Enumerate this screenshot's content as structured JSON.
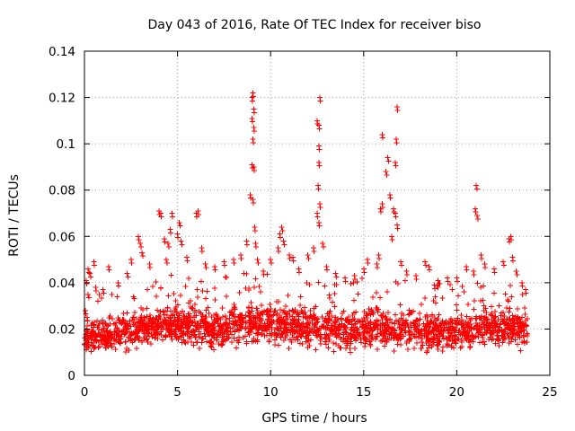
{
  "chart_data": {
    "type": "scatter",
    "title": "Day 043 of 2016, Rate Of TEC Index for receiver biso",
    "xlabel": "GPS time / hours",
    "ylabel": "ROTI / TECUs",
    "xlim": [
      0,
      25
    ],
    "ylim": [
      0,
      0.14
    ],
    "x_ticks": [
      0,
      5,
      10,
      15,
      20,
      25
    ],
    "y_ticks": [
      0,
      0.02,
      0.04,
      0.06,
      0.08,
      0.1,
      0.12,
      0.14
    ],
    "x_tick_labels": [
      "0",
      "5",
      "10",
      "15",
      "20",
      "25"
    ],
    "y_tick_labels": [
      "0",
      "0.02",
      "0.04",
      "0.06",
      "0.08",
      "0.1",
      "0.12",
      "0.14"
    ],
    "grid": true,
    "marker": "+",
    "color": "#ff0000",
    "series": [
      {
        "name": "ROTI",
        "points": [
          [
            0.05,
            0.028
          ],
          [
            0.1,
            0.041
          ],
          [
            0.2,
            0.046
          ],
          [
            0.3,
            0.044
          ],
          [
            0.2,
            0.035
          ],
          [
            0.15,
            0.025
          ],
          [
            0.5,
            0.049
          ],
          [
            0.6,
            0.038
          ],
          [
            1.0,
            0.037
          ],
          [
            1.3,
            0.047
          ],
          [
            1.8,
            0.04
          ],
          [
            2.3,
            0.044
          ],
          [
            2.5,
            0.05
          ],
          [
            2.9,
            0.06
          ],
          [
            3.0,
            0.057
          ],
          [
            3.1,
            0.053
          ],
          [
            3.5,
            0.048
          ],
          [
            4.0,
            0.071
          ],
          [
            4.1,
            0.07
          ],
          [
            4.3,
            0.059
          ],
          [
            4.5,
            0.057
          ],
          [
            4.6,
            0.063
          ],
          [
            4.4,
            0.05
          ],
          [
            4.7,
            0.07
          ],
          [
            5.0,
            0.061
          ],
          [
            5.1,
            0.066
          ],
          [
            5.2,
            0.058
          ],
          [
            5.5,
            0.051
          ],
          [
            6.0,
            0.07
          ],
          [
            6.1,
            0.071
          ],
          [
            6.3,
            0.055
          ],
          [
            6.5,
            0.048
          ],
          [
            7.0,
            0.047
          ],
          [
            7.5,
            0.049
          ],
          [
            8.0,
            0.05
          ],
          [
            8.4,
            0.052
          ],
          [
            8.7,
            0.058
          ],
          [
            8.9,
            0.078
          ],
          [
            9.0,
            0.091
          ],
          [
            9.05,
            0.102
          ],
          [
            9.0,
            0.12
          ],
          [
            9.05,
            0.122
          ],
          [
            9.1,
            0.115
          ],
          [
            9.0,
            0.111
          ],
          [
            9.1,
            0.107
          ],
          [
            9.1,
            0.09
          ],
          [
            9.05,
            0.076
          ],
          [
            9.15,
            0.064
          ],
          [
            9.2,
            0.057
          ],
          [
            9.3,
            0.05
          ],
          [
            9.6,
            0.045
          ],
          [
            10.0,
            0.05
          ],
          [
            10.4,
            0.055
          ],
          [
            10.5,
            0.061
          ],
          [
            10.6,
            0.064
          ],
          [
            10.7,
            0.058
          ],
          [
            11.0,
            0.052
          ],
          [
            11.2,
            0.051
          ],
          [
            11.5,
            0.046
          ],
          [
            12.0,
            0.052
          ],
          [
            12.3,
            0.055
          ],
          [
            12.5,
            0.07
          ],
          [
            12.55,
            0.082
          ],
          [
            12.6,
            0.099
          ],
          [
            12.6,
            0.108
          ],
          [
            12.65,
            0.12
          ],
          [
            12.5,
            0.11
          ],
          [
            12.6,
            0.092
          ],
          [
            12.65,
            0.074
          ],
          [
            12.6,
            0.066
          ],
          [
            12.8,
            0.057
          ],
          [
            13.0,
            0.047
          ],
          [
            13.5,
            0.044
          ],
          [
            14.0,
            0.042
          ],
          [
            14.5,
            0.043
          ],
          [
            15.0,
            0.046
          ],
          [
            15.2,
            0.05
          ],
          [
            15.7,
            0.048
          ],
          [
            15.8,
            0.052
          ],
          [
            15.9,
            0.072
          ],
          [
            16.0,
            0.074
          ],
          [
            16.0,
            0.104
          ],
          [
            16.2,
            0.088
          ],
          [
            16.3,
            0.094
          ],
          [
            16.4,
            0.078
          ],
          [
            16.5,
            0.06
          ],
          [
            16.6,
            0.072
          ],
          [
            16.7,
            0.092
          ],
          [
            16.75,
            0.102
          ],
          [
            16.8,
            0.116
          ],
          [
            16.7,
            0.07
          ],
          [
            16.8,
            0.065
          ],
          [
            17.0,
            0.049
          ],
          [
            17.3,
            0.045
          ],
          [
            17.8,
            0.043
          ],
          [
            18.3,
            0.049
          ],
          [
            18.5,
            0.047
          ],
          [
            18.8,
            0.039
          ],
          [
            19.0,
            0.041
          ],
          [
            19.5,
            0.042
          ],
          [
            20.0,
            0.042
          ],
          [
            20.5,
            0.047
          ],
          [
            20.9,
            0.045
          ],
          [
            21.0,
            0.072
          ],
          [
            21.05,
            0.082
          ],
          [
            21.1,
            0.069
          ],
          [
            21.3,
            0.052
          ],
          [
            21.5,
            0.048
          ],
          [
            22.0,
            0.046
          ],
          [
            22.5,
            0.049
          ],
          [
            22.8,
            0.059
          ],
          [
            22.9,
            0.06
          ],
          [
            23.0,
            0.051
          ],
          [
            23.2,
            0.045
          ],
          [
            23.5,
            0.04
          ],
          [
            23.7,
            0.037
          ]
        ]
      }
    ],
    "dense_band": {
      "x_range": [
        0,
        23.8
      ],
      "y_range": [
        0.005,
        0.04
      ],
      "mean_envelope": [
        [
          0,
          0.016
        ],
        [
          1,
          0.017
        ],
        [
          2,
          0.018
        ],
        [
          3,
          0.02
        ],
        [
          4,
          0.022
        ],
        [
          5,
          0.022
        ],
        [
          6,
          0.021
        ],
        [
          7,
          0.019
        ],
        [
          8,
          0.022
        ],
        [
          9,
          0.023
        ],
        [
          10,
          0.022
        ],
        [
          11,
          0.021
        ],
        [
          12,
          0.021
        ],
        [
          13,
          0.02
        ],
        [
          14,
          0.019
        ],
        [
          15,
          0.02
        ],
        [
          16,
          0.021
        ],
        [
          17,
          0.02
        ],
        [
          18,
          0.019
        ],
        [
          19,
          0.018
        ],
        [
          20,
          0.019
        ],
        [
          21,
          0.02
        ],
        [
          22,
          0.021
        ],
        [
          23,
          0.02
        ],
        [
          23.8,
          0.018
        ]
      ]
    }
  }
}
